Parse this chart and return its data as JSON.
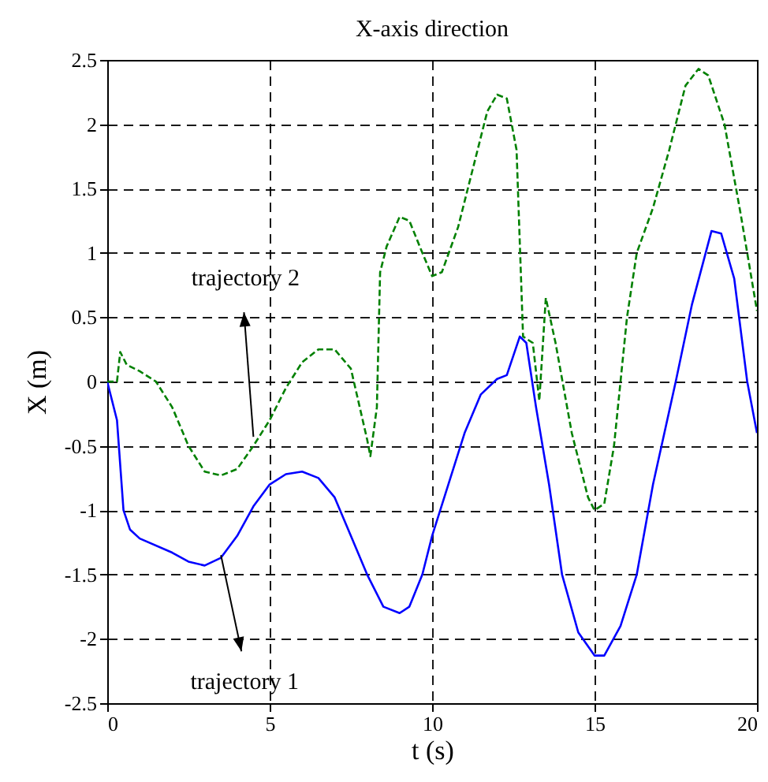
{
  "chart_data": {
    "type": "line",
    "title": "X-axis direction",
    "xlabel": "t (s)",
    "ylabel": "X (m)",
    "xlim": [
      0,
      20
    ],
    "xticks": [
      0,
      5,
      10,
      15,
      20
    ],
    "ylim": [
      -2.5,
      2.5
    ],
    "yticks": [
      -2.5,
      -2,
      -1.5,
      -1,
      -0.5,
      0,
      0.5,
      1,
      1.5,
      2,
      2.5
    ],
    "grid": true,
    "annotations": [
      {
        "text": "trajectory 2",
        "x": 4.5,
        "y": -0.43
      },
      {
        "text": "trajectory 1",
        "x": 3.5,
        "y": -1.35
      }
    ],
    "series": [
      {
        "color": "#0000ff",
        "line_style": "solid",
        "x": [
          0,
          0.3,
          0.5,
          0.7,
          1,
          2,
          2.5,
          3,
          3.5,
          4,
          4.5,
          5,
          5.5,
          6,
          6.5,
          7,
          7.5,
          8,
          8.5,
          9,
          9.3,
          9.7,
          10,
          10.5,
          11,
          11.5,
          12,
          12.3,
          12.7,
          12.9,
          13.2,
          13.6,
          14,
          14.5,
          15,
          15.3,
          15.8,
          16.3,
          16.8,
          17.5,
          18,
          18.6,
          18.9,
          19.3,
          19.7,
          20
        ],
        "values": [
          0,
          -0.3,
          -1.0,
          -1.15,
          -1.22,
          -1.33,
          -1.4,
          -1.43,
          -1.37,
          -1.2,
          -0.97,
          -0.8,
          -0.72,
          -0.7,
          -0.75,
          -0.9,
          -1.2,
          -1.5,
          -1.75,
          -1.8,
          -1.75,
          -1.5,
          -1.2,
          -0.8,
          -0.4,
          -0.1,
          0.02,
          0.05,
          0.35,
          0.3,
          -0.2,
          -0.8,
          -1.5,
          -1.95,
          -2.13,
          -2.13,
          -1.9,
          -1.5,
          -0.8,
          0,
          0.6,
          1.17,
          1.15,
          0.8,
          0,
          -0.4
        ]
      },
      {
        "color": "#008000",
        "line_style": "dashed",
        "x": [
          0,
          0.3,
          0.4,
          0.6,
          1,
          1.5,
          2,
          2.5,
          3,
          3.5,
          4,
          4.5,
          5,
          5.5,
          6,
          6.5,
          7,
          7.5,
          8,
          8.1,
          8.3,
          8.4,
          8.6,
          9,
          9.3,
          9.7,
          10,
          10.3,
          10.8,
          11.3,
          11.7,
          12,
          12.3,
          12.6,
          12.8,
          13.1,
          13.3,
          13.5,
          13.8,
          14.3,
          14.8,
          15,
          15.3,
          15.6,
          16,
          16.3,
          16.8,
          17.3,
          17.8,
          18.2,
          18.5,
          19,
          19.5,
          20
        ],
        "values": [
          0,
          0,
          0.23,
          0.13,
          0.08,
          0,
          -0.2,
          -0.5,
          -0.7,
          -0.73,
          -0.68,
          -0.5,
          -0.3,
          -0.05,
          0.15,
          0.25,
          0.25,
          0.1,
          -0.45,
          -0.58,
          -0.2,
          0.85,
          1.05,
          1.28,
          1.25,
          1.0,
          0.82,
          0.85,
          1.2,
          1.7,
          2.1,
          2.23,
          2.2,
          1.8,
          0.35,
          0.3,
          -0.15,
          0.65,
          0.3,
          -0.4,
          -0.9,
          -1.0,
          -0.95,
          -0.5,
          0.5,
          1.0,
          1.35,
          1.8,
          2.3,
          2.43,
          2.38,
          2.0,
          1.3,
          0.55
        ]
      }
    ]
  }
}
